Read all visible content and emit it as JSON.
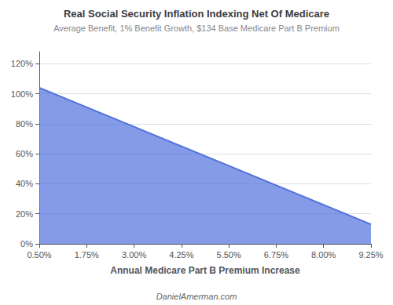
{
  "chart_data": {
    "type": "area",
    "title": "Real Social Security Inflation Indexing Net Of Medicare",
    "subtitle": "Average Benefit, 1% Benefit Growth, $134 Base Medicare Part B Premium",
    "xlabel": "Annual Medicare Part B Premium Increase",
    "annotations": [
      "DanielAmerman.com"
    ],
    "x": [
      0.5,
      9.25
    ],
    "values": [
      104.0,
      13.0
    ],
    "xlim": [
      0.5,
      9.25
    ],
    "xticks": [
      {
        "value": 0.5,
        "label": "0.50%"
      },
      {
        "value": 1.75,
        "label": "1.75%"
      },
      {
        "value": 3.0,
        "label": "3.00%"
      },
      {
        "value": 4.25,
        "label": "4.25%"
      },
      {
        "value": 5.5,
        "label": "5.50%"
      },
      {
        "value": 6.75,
        "label": "6.75%"
      },
      {
        "value": 8.0,
        "label": "8.00%"
      },
      {
        "value": 9.25,
        "label": "9.25%"
      }
    ],
    "ylim": [
      0,
      128
    ],
    "yticks": [
      {
        "value": 0,
        "label": "0%"
      },
      {
        "value": 20,
        "label": "20%"
      },
      {
        "value": 40,
        "label": "40%"
      },
      {
        "value": 60,
        "label": "60%"
      },
      {
        "value": 80,
        "label": "80%"
      },
      {
        "value": 100,
        "label": "100%"
      },
      {
        "value": 120,
        "label": "120%"
      }
    ],
    "grid": true
  }
}
